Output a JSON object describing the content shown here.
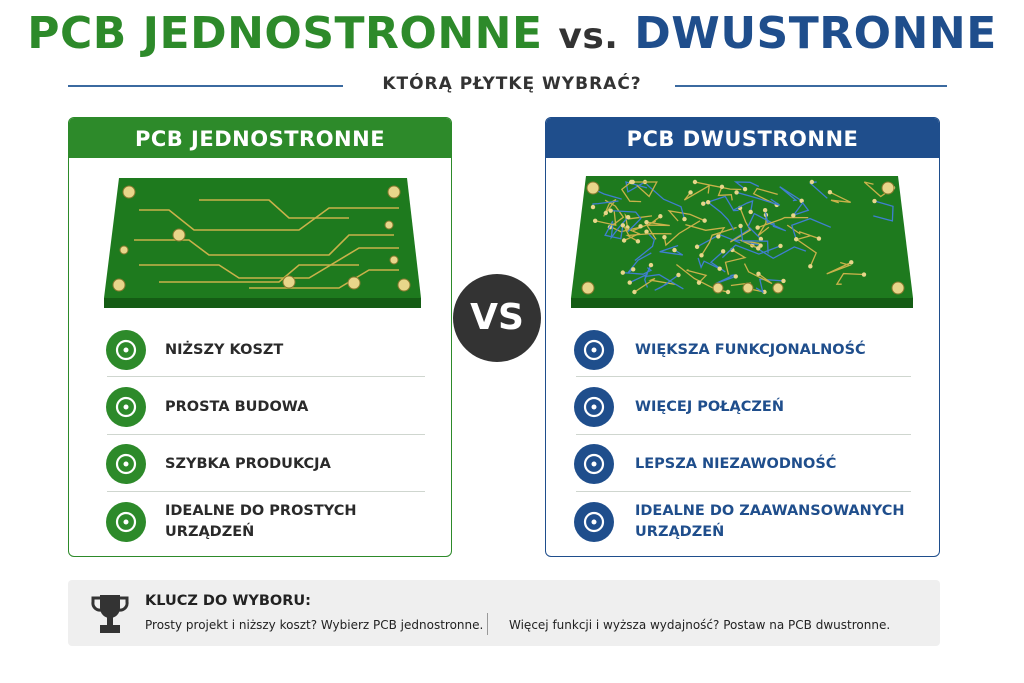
{
  "header": {
    "title_left": "PCB JEDNOSTRONNE",
    "title_vs": "vs.",
    "title_right": "DWUSTRONNE",
    "subtitle": "KTÓRĄ PŁYTKĘ WYBRAĆ?"
  },
  "left": {
    "title": "PCB JEDNOSTRONNE",
    "items": [
      "NIŻSZY KOSZT",
      "PROSTA BUDOWA",
      "SZYBKA PRODUKCJA",
      "IDEALNE DO PROSTYCH URZĄDZEŃ"
    ]
  },
  "vs": "VS",
  "right": {
    "title": "PCB DWUSTRONNE",
    "items": [
      "WIĘKSZA FUNKCJONALNOŚĆ",
      "WIĘCEJ POŁĄCZEŃ",
      "LEPSZA NIEZAWODNOŚĆ",
      "IDEALNE DO ZAAWANSOWANYCH URZĄDZEŃ"
    ]
  },
  "footer": {
    "title": "KLUCZ DO WYBORU:",
    "left": "Prosty projekt i niższy koszt? Wybierz PCB jednostronne.",
    "right": "Więcej funkcji i wyższa wydajność? Postaw na PCB dwustronne."
  }
}
